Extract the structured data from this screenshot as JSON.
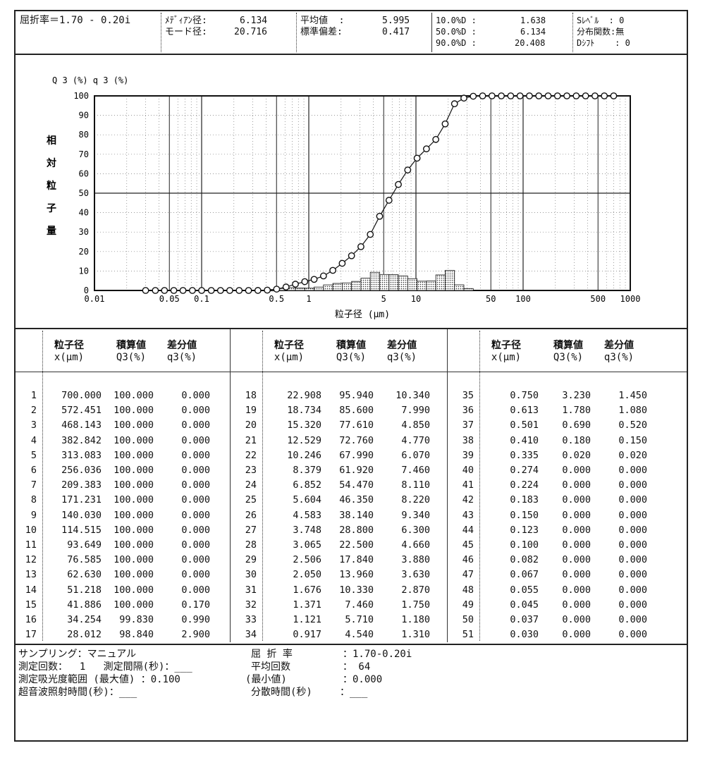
{
  "header": {
    "refractive": "屈折率＝1.70 - 0.20i",
    "median_label": "ﾒﾃﾞｨｱﾝ径:",
    "median_value": "6.134",
    "mode_label": "モード径:",
    "mode_value": "20.716",
    "mean_label": "平均値  :",
    "mean_value": "5.995",
    "std_label": "標準偏差:",
    "std_value": "0.417",
    "d10_label": "10.0%D :",
    "d10_value": "1.638",
    "d50_label": "50.0%D :",
    "d50_value": "6.134",
    "d90_label": "90.0%D :",
    "d90_value": "20.408",
    "slevel": "Sﾚﾍﾞﾙ  : 0",
    "dist_func": "分布関数:無",
    "dshift": "Dｼﾌﾄ    : 0"
  },
  "chart_data": {
    "type": "line",
    "title": "",
    "y_label_top": "Q 3 (%)  q 3 (%)",
    "ylabel": "相 対 粒 子 量",
    "ylabel_chars": [
      "相",
      "対",
      "粒",
      "子",
      "量"
    ],
    "xlabel": "粒子径 (μm)",
    "xscale": "log",
    "xlim": [
      0.01,
      1000
    ],
    "ylim": [
      0,
      100
    ],
    "y_ticks": [
      "100",
      "90",
      "80",
      "70",
      "60",
      "50",
      "40",
      "30",
      "20",
      "10",
      "0"
    ],
    "x_tick_labels": [
      {
        "v": 0.01,
        "t": "0.01"
      },
      {
        "v": 0.05,
        "t": "0.05"
      },
      {
        "v": 0.1,
        "t": "0.1"
      },
      {
        "v": 0.5,
        "t": "0.5"
      },
      {
        "v": 1,
        "t": "1"
      },
      {
        "v": 5,
        "t": "5"
      },
      {
        "v": 10,
        "t": "10"
      },
      {
        "v": 50,
        "t": "50"
      },
      {
        "v": 100,
        "t": "100"
      },
      {
        "v": 500,
        "t": "500"
      },
      {
        "v": 1000,
        "t": "1000"
      }
    ],
    "grid": true,
    "series": [
      {
        "name": "Q3(%)",
        "kind": "cumulative-line"
      },
      {
        "name": "q3(%)",
        "kind": "histogram"
      }
    ]
  },
  "table": {
    "headers": {
      "col1_a": "粒子径",
      "col1_b": "x(μm)",
      "col2_a": "積算値",
      "col2_b": "Q3(%)",
      "col3_a": "差分値",
      "col3_b": "q3(%)"
    },
    "rows": [
      [
        "1",
        "700.000",
        "100.000",
        "0.000"
      ],
      [
        "2",
        "572.451",
        "100.000",
        "0.000"
      ],
      [
        "3",
        "468.143",
        "100.000",
        "0.000"
      ],
      [
        "4",
        "382.842",
        "100.000",
        "0.000"
      ],
      [
        "5",
        "313.083",
        "100.000",
        "0.000"
      ],
      [
        "6",
        "256.036",
        "100.000",
        "0.000"
      ],
      [
        "7",
        "209.383",
        "100.000",
        "0.000"
      ],
      [
        "8",
        "171.231",
        "100.000",
        "0.000"
      ],
      [
        "9",
        "140.030",
        "100.000",
        "0.000"
      ],
      [
        "10",
        "114.515",
        "100.000",
        "0.000"
      ],
      [
        "11",
        "93.649",
        "100.000",
        "0.000"
      ],
      [
        "12",
        "76.585",
        "100.000",
        "0.000"
      ],
      [
        "13",
        "62.630",
        "100.000",
        "0.000"
      ],
      [
        "14",
        "51.218",
        "100.000",
        "0.000"
      ],
      [
        "15",
        "41.886",
        "100.000",
        "0.170"
      ],
      [
        "16",
        "34.254",
        "99.830",
        "0.990"
      ],
      [
        "17",
        "28.012",
        "98.840",
        "2.900"
      ],
      [
        "18",
        "22.908",
        "95.940",
        "10.340"
      ],
      [
        "19",
        "18.734",
        "85.600",
        "7.990"
      ],
      [
        "20",
        "15.320",
        "77.610",
        "4.850"
      ],
      [
        "21",
        "12.529",
        "72.760",
        "4.770"
      ],
      [
        "22",
        "10.246",
        "67.990",
        "6.070"
      ],
      [
        "23",
        "8.379",
        "61.920",
        "7.460"
      ],
      [
        "24",
        "6.852",
        "54.470",
        "8.110"
      ],
      [
        "25",
        "5.604",
        "46.350",
        "8.220"
      ],
      [
        "26",
        "4.583",
        "38.140",
        "9.340"
      ],
      [
        "27",
        "3.748",
        "28.800",
        "6.300"
      ],
      [
        "28",
        "3.065",
        "22.500",
        "4.660"
      ],
      [
        "29",
        "2.506",
        "17.840",
        "3.880"
      ],
      [
        "30",
        "2.050",
        "13.960",
        "3.630"
      ],
      [
        "31",
        "1.676",
        "10.330",
        "2.870"
      ],
      [
        "32",
        "1.371",
        "7.460",
        "1.750"
      ],
      [
        "33",
        "1.121",
        "5.710",
        "1.180"
      ],
      [
        "34",
        "0.917",
        "4.540",
        "1.310"
      ],
      [
        "35",
        "0.750",
        "3.230",
        "1.450"
      ],
      [
        "36",
        "0.613",
        "1.780",
        "1.080"
      ],
      [
        "37",
        "0.501",
        "0.690",
        "0.520"
      ],
      [
        "38",
        "0.410",
        "0.180",
        "0.150"
      ],
      [
        "39",
        "0.335",
        "0.020",
        "0.020"
      ],
      [
        "40",
        "0.274",
        "0.000",
        "0.000"
      ],
      [
        "41",
        "0.224",
        "0.000",
        "0.000"
      ],
      [
        "42",
        "0.183",
        "0.000",
        "0.000"
      ],
      [
        "43",
        "0.150",
        "0.000",
        "0.000"
      ],
      [
        "44",
        "0.123",
        "0.000",
        "0.000"
      ],
      [
        "45",
        "0.100",
        "0.000",
        "0.000"
      ],
      [
        "46",
        "0.082",
        "0.000",
        "0.000"
      ],
      [
        "47",
        "0.067",
        "0.000",
        "0.000"
      ],
      [
        "48",
        "0.055",
        "0.000",
        "0.000"
      ],
      [
        "49",
        "0.045",
        "0.000",
        "0.000"
      ],
      [
        "50",
        "0.037",
        "0.000",
        "0.000"
      ],
      [
        "51",
        "0.030",
        "0.000",
        "0.000"
      ]
    ]
  },
  "footer": {
    "sampling": "サンプリング：マニュアル",
    "meas_count": "測定回数：  1   測定間隔(秒)：___",
    "absorb_range": "測定吸光度範囲 (最大値) ：0.100",
    "ultra_time": "超音波照射時間(秒)：___",
    "refr_label": "屈 折 率",
    "refr_value": "：1.70-0.20i",
    "avg_label": "平均回数",
    "avg_value": "： 64",
    "min_label": "(最小値)",
    "min_value": "：0.000",
    "disp_label": "分散時間(秒)",
    "disp_value": "：___"
  }
}
